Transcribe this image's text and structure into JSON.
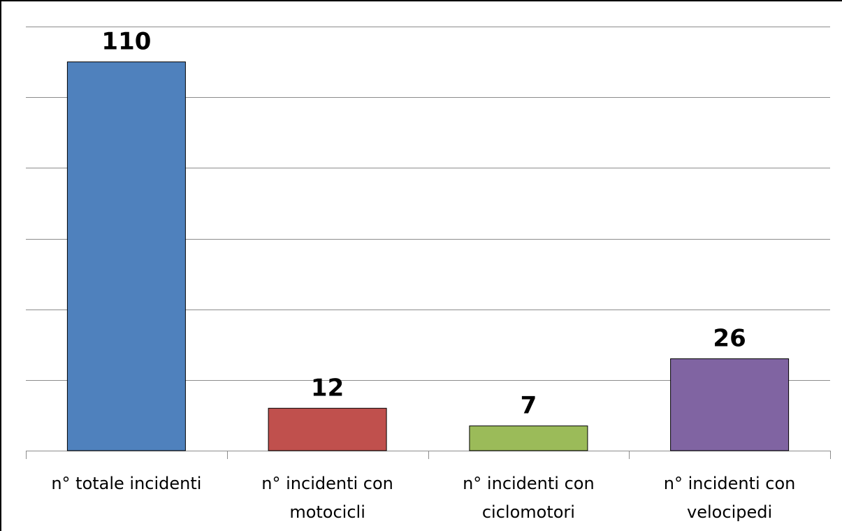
{
  "chart_data": {
    "type": "bar",
    "categories": [
      [
        "n° totale incidenti"
      ],
      [
        "n° incidenti con",
        "motocicli"
      ],
      [
        "n° incidenti con",
        "ciclomotori"
      ],
      [
        "n° incidenti con",
        "velocipedi"
      ]
    ],
    "values": [
      110,
      12,
      7,
      26
    ],
    "colors": [
      "#4f81bd",
      "#c0504d",
      "#9bbb59",
      "#8064a2"
    ],
    "ylim": [
      0,
      120
    ],
    "gridlines": [
      20,
      40,
      60,
      80,
      100,
      120
    ],
    "grid": true,
    "data_labels": true,
    "legend": "none"
  }
}
